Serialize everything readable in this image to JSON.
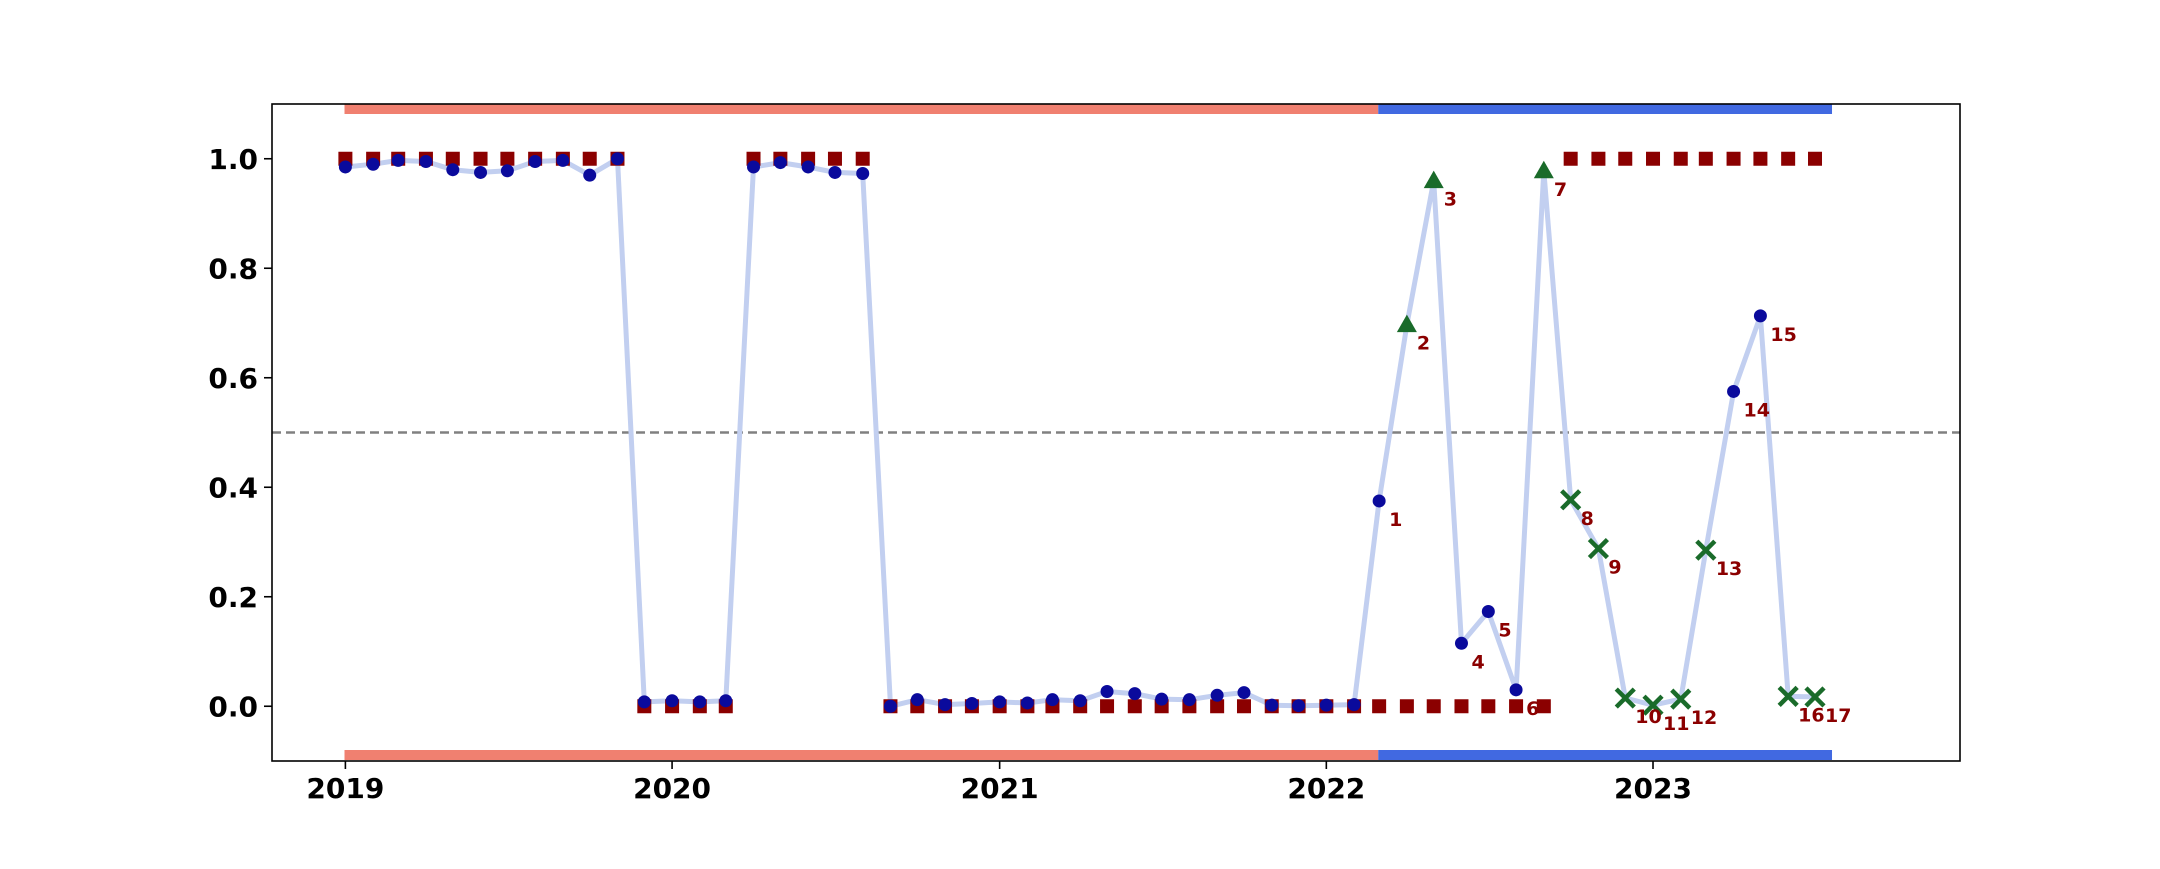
{
  "chart_data": {
    "type": "line",
    "title": "",
    "xlabel": "",
    "ylabel": "",
    "xlim": [
      "2018-10-11",
      "2023-12-10"
    ],
    "ylim": [
      -0.1,
      1.1
    ],
    "x_ticks": [
      "2019",
      "2020",
      "2021",
      "2022",
      "2023"
    ],
    "y_ticks": [
      "0.0",
      "0.2",
      "0.4",
      "0.6",
      "0.8",
      "1.0"
    ],
    "grid": false,
    "legend": "none",
    "threshold": 0.5,
    "colors": {
      "line": "#c2cff0",
      "point": "#0a0a9c",
      "actual": "#8b0000",
      "flag_up": "#1a6b2a",
      "flag_cross": "#1a6b2a",
      "band_a": "#f08070",
      "band_b": "#4169e1",
      "threshold": "#808080",
      "annotation": "#8b0000"
    },
    "bands": [
      {
        "start": "2018-12-31",
        "end": "2022-02-28",
        "color": "#f08070"
      },
      {
        "start": "2022-02-28",
        "end": "2023-07-20",
        "color": "#4169e1"
      }
    ],
    "dates": [
      "2019-01-01",
      "2019-02-01",
      "2019-03-01",
      "2019-04-01",
      "2019-05-01",
      "2019-06-01",
      "2019-07-01",
      "2019-08-01",
      "2019-09-01",
      "2019-10-01",
      "2019-11-01",
      "2019-12-01",
      "2020-01-01",
      "2020-02-01",
      "2020-03-01",
      "2020-04-01",
      "2020-05-01",
      "2020-06-01",
      "2020-07-01",
      "2020-08-01",
      "2020-09-01",
      "2020-10-01",
      "2020-11-01",
      "2020-12-01",
      "2021-01-01",
      "2021-02-01",
      "2021-03-01",
      "2021-04-01",
      "2021-05-01",
      "2021-06-01",
      "2021-07-01",
      "2021-08-01",
      "2021-09-01",
      "2021-10-01",
      "2021-11-01",
      "2021-12-01",
      "2022-01-01",
      "2022-02-01",
      "2022-03-01",
      "2022-04-01",
      "2022-05-01",
      "2022-06-01",
      "2022-07-01",
      "2022-08-01",
      "2022-09-01",
      "2022-10-01",
      "2022-11-01",
      "2022-12-01",
      "2023-01-01",
      "2023-02-01",
      "2023-03-01",
      "2023-04-01",
      "2023-05-01",
      "2023-06-01",
      "2023-07-01"
    ],
    "predicted": [
      0.985,
      0.99,
      0.997,
      0.995,
      0.98,
      0.975,
      0.978,
      0.995,
      0.997,
      0.97,
      1.0,
      0.008,
      0.01,
      0.008,
      0.01,
      0.985,
      0.993,
      0.985,
      0.975,
      0.973,
      0.0,
      0.012,
      0.003,
      0.005,
      0.008,
      0.006,
      0.012,
      0.01,
      0.027,
      0.023,
      0.013,
      0.012,
      0.02,
      0.025,
      0.002,
      0.001,
      0.002,
      0.003,
      0.375,
      0.697,
      0.96,
      0.115,
      0.173,
      0.03,
      0.978,
      0.377,
      0.288,
      0.015,
      0.002,
      0.013,
      0.285,
      0.575,
      0.713,
      0.018,
      0.017
    ],
    "actual": [
      1,
      1,
      1,
      1,
      1,
      1,
      1,
      1,
      1,
      1,
      1,
      0,
      0,
      0,
      0,
      1,
      1,
      1,
      1,
      1,
      0,
      0,
      0,
      0,
      0,
      0,
      0,
      0,
      0,
      0,
      0,
      0,
      0,
      0,
      0,
      0,
      0,
      0,
      0,
      0,
      0,
      0,
      0,
      0,
      0,
      1,
      1,
      1,
      1,
      1,
      1,
      1,
      1,
      1,
      1
    ],
    "flags": [
      {
        "label": "1",
        "index": 38,
        "marker": "circle"
      },
      {
        "label": "2",
        "index": 39,
        "marker": "triangle"
      },
      {
        "label": "3",
        "index": 40,
        "marker": "triangle"
      },
      {
        "label": "4",
        "index": 41,
        "marker": "circle"
      },
      {
        "label": "5",
        "index": 42,
        "marker": "circle"
      },
      {
        "label": "6",
        "index": 43,
        "marker": "circle"
      },
      {
        "label": "7",
        "index": 44,
        "marker": "triangle"
      },
      {
        "label": "8",
        "index": 45,
        "marker": "cross"
      },
      {
        "label": "9",
        "index": 46,
        "marker": "cross"
      },
      {
        "label": "10",
        "index": 47,
        "marker": "cross"
      },
      {
        "label": "11",
        "index": 48,
        "marker": "cross"
      },
      {
        "label": "12",
        "index": 49,
        "marker": "cross"
      },
      {
        "label": "13",
        "index": 50,
        "marker": "cross"
      },
      {
        "label": "14",
        "index": 51,
        "marker": "circle"
      },
      {
        "label": "15",
        "index": 52,
        "marker": "circle"
      },
      {
        "label": "16",
        "index": 53,
        "marker": "cross"
      },
      {
        "label": "17",
        "index": 54,
        "marker": "cross"
      }
    ]
  }
}
